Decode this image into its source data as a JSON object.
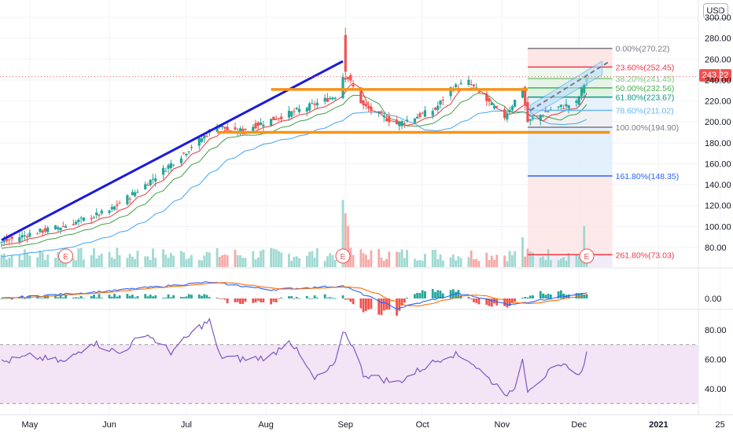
{
  "currency": "USD",
  "last_price": "243.22",
  "chart_data": [
    {
      "type": "candlestick",
      "title": "",
      "ylim": [
        70,
        305
      ],
      "y_ticks": [
        "300.00",
        "280.00",
        "260.00",
        "240.00",
        "220.00",
        "200.00",
        "180.00",
        "160.00",
        "140.00",
        "120.00",
        "100.00",
        "80.00"
      ],
      "x_ticks": [
        "May",
        "Jun",
        "Jul",
        "Aug",
        "Sep",
        "Oct",
        "Nov",
        "Dec",
        "2021",
        "25"
      ],
      "colors": {
        "up": "#26a69a",
        "down": "#ef5350",
        "ma_fast": "#e53935",
        "ma_mid": "#43a047",
        "ma_slow": "#42a5f5",
        "trendline": "#1a1adb",
        "channel": "#f7931a"
      },
      "close_anchors": [
        {
          "date": "2020-04-20",
          "close": 85
        },
        {
          "date": "2020-05-01",
          "close": 93
        },
        {
          "date": "2020-05-15",
          "close": 101
        },
        {
          "date": "2020-06-01",
          "close": 115
        },
        {
          "date": "2020-06-15",
          "close": 140
        },
        {
          "date": "2020-07-01",
          "close": 172
        },
        {
          "date": "2020-07-13",
          "close": 197
        },
        {
          "date": "2020-07-20",
          "close": 190
        },
        {
          "date": "2020-08-03",
          "close": 202
        },
        {
          "date": "2020-08-17",
          "close": 214
        },
        {
          "date": "2020-08-28",
          "close": 225
        },
        {
          "date": "2020-08-31",
          "close": 244
        },
        {
          "date": "2020-09-02",
          "close": 242
        },
        {
          "date": "2020-09-08",
          "close": 215
        },
        {
          "date": "2020-09-21",
          "close": 198
        },
        {
          "date": "2020-10-06",
          "close": 212
        },
        {
          "date": "2020-10-12",
          "close": 232
        },
        {
          "date": "2020-10-19",
          "close": 238
        },
        {
          "date": "2020-10-26",
          "close": 220
        },
        {
          "date": "2020-11-02",
          "close": 205
        },
        {
          "date": "2020-11-09",
          "close": 232
        },
        {
          "date": "2020-11-11",
          "close": 200
        },
        {
          "date": "2020-11-20",
          "close": 212
        },
        {
          "date": "2020-11-30",
          "close": 218
        },
        {
          "date": "2020-12-04",
          "close": 243
        }
      ],
      "trendline": {
        "from": {
          "date": "2020-04-20",
          "price": 87
        },
        "to": {
          "date": "2020-08-31",
          "price": 258
        }
      },
      "channel_lines": [
        {
          "from": {
            "date": "2020-08-03",
            "price": 231
          },
          "to": {
            "date": "2020-11-11",
            "price": 231
          }
        },
        {
          "from": {
            "date": "2020-07-13",
            "price": 190
          },
          "to": {
            "date": "2020-12-13",
            "price": 190
          }
        }
      ],
      "fib_retracement": {
        "start_date": "2020-11-11",
        "end_date": "2020-12-14",
        "levels": [
          {
            "label": "0.00%(270.22)",
            "price": 270.22,
            "color": "#787b86"
          },
          {
            "label": "23.60%(252.45)",
            "price": 252.45,
            "color": "#f23645"
          },
          {
            "label": "38.20%(241.45)",
            "price": 241.45,
            "color": "#81c784"
          },
          {
            "label": "50.00%(232.56)",
            "price": 232.56,
            "color": "#4caf50"
          },
          {
            "label": "61.80%(223.67)",
            "price": 223.67,
            "color": "#089981"
          },
          {
            "label": "78.60%(211.02)",
            "price": 211.02,
            "color": "#64b5f6"
          },
          {
            "label": "100.00%(194.90)",
            "price": 194.9,
            "color": "#787b86"
          },
          {
            "label": "161.80%(148.35)",
            "price": 148.35,
            "color": "#2962ff"
          },
          {
            "label": "261.80%(73.03)",
            "price": 73.03,
            "color": "#f23645"
          }
        ]
      },
      "earnings_markers": [
        {
          "date": "2020-05-15",
          "label": "E"
        },
        {
          "date": "2020-08-31",
          "label": "E"
        },
        {
          "date": "2020-12-04",
          "label": "E"
        }
      ],
      "volume_spikes": [
        {
          "date": "2020-08-31",
          "value": 0.9
        },
        {
          "date": "2020-09-01",
          "value": 0.72
        },
        {
          "date": "2020-09-02",
          "value": 0.55
        },
        {
          "date": "2020-12-03",
          "value": 0.55
        },
        {
          "date": "2020-11-09",
          "value": 0.4
        }
      ]
    },
    {
      "type": "macd",
      "y_ticks": [
        "0.00"
      ],
      "colors": {
        "macd": "#2962ff",
        "signal": "#ff6d00",
        "hist_up": "#26a69a",
        "hist_down": "#ef5350"
      },
      "macd_anchors": [
        {
          "date": "2020-04-20",
          "value": 0.0
        },
        {
          "date": "2020-06-01",
          "value": 0.6
        },
        {
          "date": "2020-07-10",
          "value": 1.3
        },
        {
          "date": "2020-08-03",
          "value": 0.7
        },
        {
          "date": "2020-08-31",
          "value": 1.0
        },
        {
          "date": "2020-09-21",
          "value": -0.8
        },
        {
          "date": "2020-10-15",
          "value": 0.4
        },
        {
          "date": "2020-11-05",
          "value": -0.5
        },
        {
          "date": "2020-12-04",
          "value": 0.5
        }
      ]
    },
    {
      "type": "rsi",
      "y_ticks": [
        "80.00",
        "60.00",
        "40.00"
      ],
      "ylim": [
        25,
        92
      ],
      "band": [
        30,
        70
      ],
      "colors": {
        "line": "#7e57c2",
        "band": "#f3e5f5"
      },
      "rsi_anchors": [
        {
          "date": "2020-04-20",
          "value": 58
        },
        {
          "date": "2020-05-01",
          "value": 62
        },
        {
          "date": "2020-05-15",
          "value": 58
        },
        {
          "date": "2020-05-25",
          "value": 72
        },
        {
          "date": "2020-06-05",
          "value": 64
        },
        {
          "date": "2020-06-15",
          "value": 78
        },
        {
          "date": "2020-06-25",
          "value": 65
        },
        {
          "date": "2020-07-06",
          "value": 82
        },
        {
          "date": "2020-07-10",
          "value": 86
        },
        {
          "date": "2020-07-14",
          "value": 62
        },
        {
          "date": "2020-07-24",
          "value": 60
        },
        {
          "date": "2020-08-03",
          "value": 62
        },
        {
          "date": "2020-08-10",
          "value": 74
        },
        {
          "date": "2020-08-20",
          "value": 46
        },
        {
          "date": "2020-08-28",
          "value": 56
        },
        {
          "date": "2020-08-31",
          "value": 80
        },
        {
          "date": "2020-09-03",
          "value": 72
        },
        {
          "date": "2020-09-08",
          "value": 50
        },
        {
          "date": "2020-09-21",
          "value": 44
        },
        {
          "date": "2020-10-01",
          "value": 54
        },
        {
          "date": "2020-10-12",
          "value": 64
        },
        {
          "date": "2020-10-19",
          "value": 60
        },
        {
          "date": "2020-10-26",
          "value": 48
        },
        {
          "date": "2020-11-02",
          "value": 38
        },
        {
          "date": "2020-11-05",
          "value": 36
        },
        {
          "date": "2020-11-09",
          "value": 60
        },
        {
          "date": "2020-11-11",
          "value": 40
        },
        {
          "date": "2020-11-20",
          "value": 52
        },
        {
          "date": "2020-11-27",
          "value": 56
        },
        {
          "date": "2020-12-01",
          "value": 48
        },
        {
          "date": "2020-12-04",
          "value": 64
        }
      ]
    }
  ]
}
